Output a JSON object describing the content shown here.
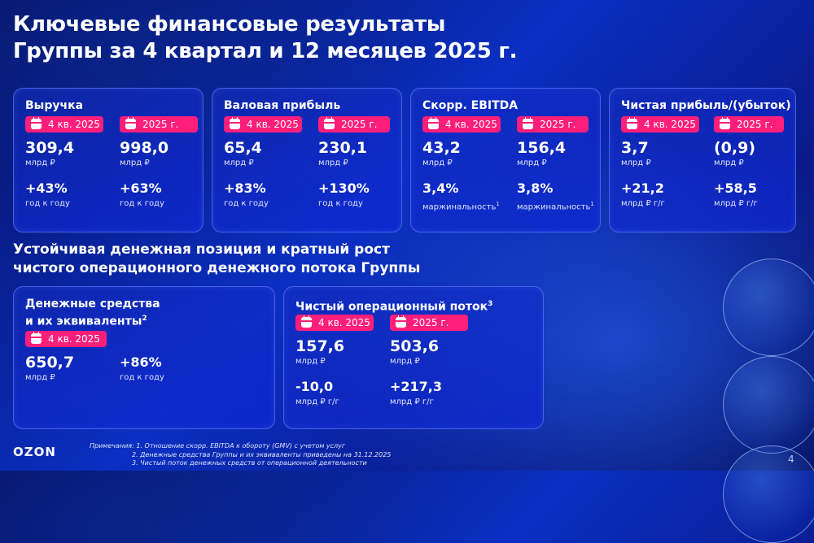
{
  "title_line1": "Ключевые финансовые результаты",
  "title_line2": "Группы за 4 квартал и 12 месяцев 2025 г.",
  "cards": [
    {
      "title": "Выручка",
      "q_badge": "4 кв. 2025",
      "y_badge": "2025 г.",
      "q_value": "309,4",
      "q_unit": "млрд ₽",
      "y_value": "998,0",
      "y_unit": "млрд ₽",
      "q_change": "+43%",
      "q_change_label": "год к году",
      "y_change": "+63%",
      "y_change_label": "год к году"
    },
    {
      "title": "Валовая прибыль",
      "q_badge": "4 кв. 2025",
      "y_badge": "2025 г.",
      "q_value": "65,4",
      "q_unit": "млрд ₽",
      "y_value": "230,1",
      "y_unit": "млрд ₽",
      "q_change": "+83%",
      "q_change_label": "год к году",
      "y_change": "+130%",
      "y_change_label": "год к году"
    },
    {
      "title": "Скорр. EBITDA",
      "q_badge": "4 кв. 2025",
      "y_badge": "2025 г.",
      "q_value": "43,2",
      "q_unit": "млрд ₽",
      "y_value": "156,4",
      "y_unit": "млрд ₽",
      "q_change": "3,4%",
      "q_change_label": "маржинальность",
      "y_change": "3,8%",
      "y_change_label": "маржинальность",
      "footnote": "1"
    },
    {
      "title": "Чистая прибыль/(убыток)",
      "q_badge": "4 кв. 2025",
      "y_badge": "2025 г.",
      "q_value": "3,7",
      "q_unit": "млрд ₽",
      "y_value": "(0,9)",
      "y_unit": "млрд ₽",
      "q_change": "+21,2",
      "q_change_label": "млрд ₽ г/г",
      "y_change": "+58,5",
      "y_change_label": "млрд ₽ г/г"
    }
  ],
  "section_line1": "Устойчивая денежная позиция и кратный рост",
  "section_line2": "чистого операционного денежного потока Группы",
  "cash": {
    "title_line1": "Денежные средства",
    "title_line2": "и их эквиваленты",
    "footnote": "2",
    "badge": "4 кв. 2025",
    "value": "650,7",
    "unit": "млрд ₽",
    "change": "+86%",
    "change_label": "год к году"
  },
  "flow": {
    "title": "Чистый операционный поток",
    "footnote": "3",
    "q_badge": "4 кв. 2025",
    "y_badge": "2025 г.",
    "q_value": "157,6",
    "q_unit": "млрд ₽",
    "y_value": "503,6",
    "y_unit": "млрд ₽",
    "q_change": "-10,0",
    "q_change_label": "млрд ₽ г/г",
    "y_change": "+217,3",
    "y_change_label": "млрд ₽ г/г"
  },
  "notes": [
    "Примечания: 1. Отношение скорр. EBITDA к обороту (GMV) с учетом услуг",
    "2. Денежные средства Группы и их эквиваленты приведены на 31.12.2025",
    "3. Чистый поток денежных средств от операционной деятельности"
  ],
  "logo": "OZON",
  "page_number": "4",
  "colors": {
    "accent_pink": "#ff1f7a",
    "background_blue": "#0a2fc2"
  }
}
